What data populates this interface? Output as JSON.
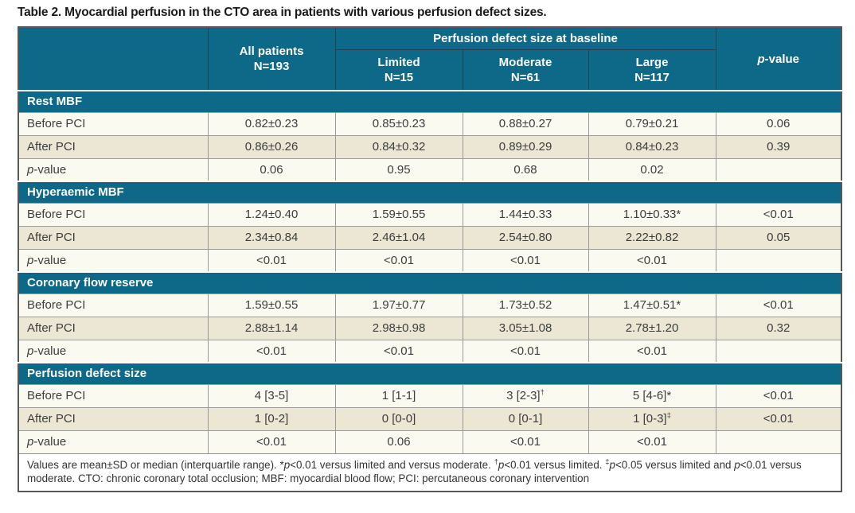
{
  "title": "Table 2. Myocardial perfusion in the CTO area in patients with various perfusion defect sizes.",
  "colors": {
    "header_teal": "#0e6887",
    "row_light": "#fbfaf0",
    "row_beige": "#ebe7d4",
    "grid_gray": "#9b9b9b",
    "outer_border": "#57585a",
    "header_text": "#ffffff",
    "body_text": "#3d3d3d"
  },
  "header": {
    "all_patients": {
      "label": "All patients",
      "n": "N=193"
    },
    "group_label": "Perfusion defect size at baseline",
    "subcols": [
      {
        "label": "Limited",
        "n": "N=15"
      },
      {
        "label": "Moderate",
        "n": "N=61"
      },
      {
        "label": "Large",
        "n": "N=117"
      }
    ],
    "pvalue": {
      "italic": "p",
      "rest": "-value"
    }
  },
  "sections": [
    {
      "title": "Rest MBF",
      "rows": [
        {
          "label": "Before PCI",
          "cells": [
            "0.82±0.23",
            "0.85±0.23",
            "0.88±0.27",
            "0.79±0.21",
            "0.06"
          ]
        },
        {
          "label": "After PCI",
          "cells": [
            "0.86±0.26",
            "0.84±0.32",
            "0.89±0.29",
            "0.84±0.23",
            "0.39"
          ]
        },
        {
          "label": "p-value",
          "italic_first": true,
          "cells": [
            "0.06",
            "0.95",
            "0.68",
            "0.02",
            ""
          ]
        }
      ]
    },
    {
      "title": "Hyperaemic MBF",
      "rows": [
        {
          "label": "Before PCI",
          "cells": [
            "1.24±0.40",
            "1.59±0.55",
            "1.44±0.33",
            "1.10±0.33*",
            "<0.01"
          ]
        },
        {
          "label": "After PCI",
          "cells": [
            "2.34±0.84",
            "2.46±1.04",
            "2.54±0.80",
            "2.22±0.82",
            "0.05"
          ]
        },
        {
          "label": "p-value",
          "italic_first": true,
          "cells": [
            "<0.01",
            "<0.01",
            "<0.01",
            "<0.01",
            ""
          ]
        }
      ]
    },
    {
      "title": "Coronary flow reserve",
      "rows": [
        {
          "label": "Before PCI",
          "cells": [
            "1.59±0.55",
            "1.97±0.77",
            "1.73±0.52",
            "1.47±0.51*",
            "<0.01"
          ]
        },
        {
          "label": "After PCI",
          "cells": [
            "2.88±1.14",
            "2.98±0.98",
            "3.05±1.08",
            "2.78±1.20",
            "0.32"
          ]
        },
        {
          "label": "p-value",
          "italic_first": true,
          "cells": [
            "<0.01",
            "<0.01",
            "<0.01",
            "<0.01",
            ""
          ]
        }
      ]
    },
    {
      "title": "Perfusion defect size",
      "rows": [
        {
          "label": "Before PCI",
          "cells": [
            "4 [3-5]",
            "1 [1-1]",
            {
              "v": "3 [2-3]",
              "sup": "†"
            },
            "5 [4-6]*",
            "<0.01"
          ]
        },
        {
          "label": "After PCI",
          "cells": [
            "1 [0-2]",
            "0 [0-0]",
            "0 [0-1]",
            {
              "v": "1 [0-3]",
              "sup": "‡"
            },
            "<0.01"
          ]
        },
        {
          "label": "p-value",
          "italic_first": true,
          "cells": [
            "<0.01",
            "0.06",
            "<0.01",
            "<0.01",
            ""
          ]
        }
      ]
    }
  ],
  "footnote_segments": [
    {
      "t": "Values are mean±SD or median (interquartile range). *"
    },
    {
      "t": "p",
      "i": true
    },
    {
      "t": "<0.01 versus limited and versus moderate. "
    },
    {
      "t": "†",
      "sup": true
    },
    {
      "t": "p",
      "i": true
    },
    {
      "t": "<0.01 versus limited. "
    },
    {
      "t": "‡",
      "sup": true
    },
    {
      "t": "p",
      "i": true
    },
    {
      "t": "<0.05 versus limited and "
    },
    {
      "t": "p",
      "i": true
    },
    {
      "t": "<0.01 versus moderate. CTO: chronic coronary total occlusion; MBF: myocardial blood flow; PCI: percutaneous coronary intervention"
    }
  ]
}
